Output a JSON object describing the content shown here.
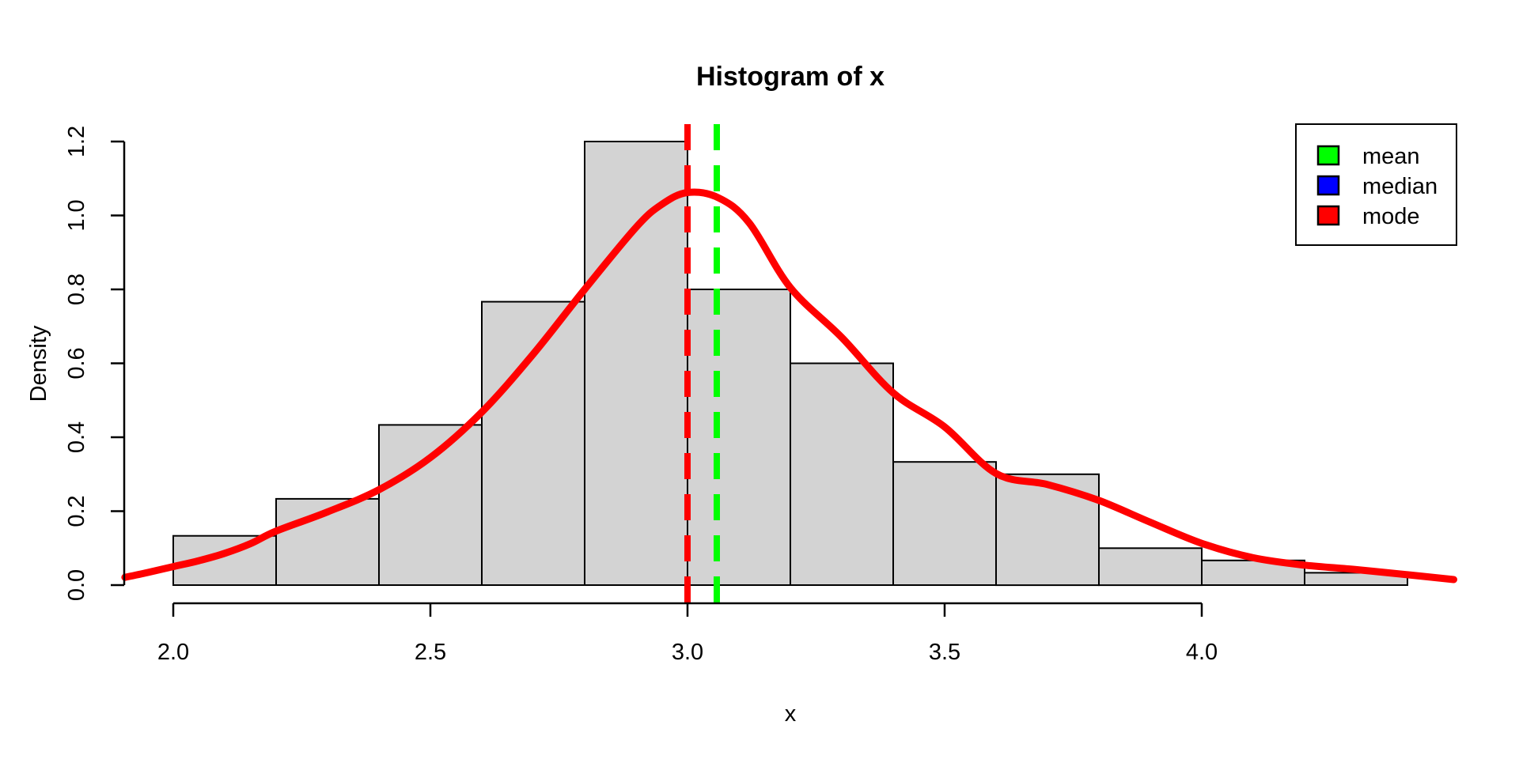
{
  "figure": {
    "title": "Histogram of x",
    "x_axis": {
      "label": "x",
      "tick_labels": [
        "2.0",
        "2.5",
        "3.0",
        "3.5",
        "4.0"
      ],
      "tick_values": [
        2.0,
        2.5,
        3.0,
        3.5,
        4.0
      ]
    },
    "y_axis": {
      "label": "Density",
      "tick_labels": [
        "0.0",
        "0.2",
        "0.4",
        "0.6",
        "0.8",
        "1.0",
        "1.2"
      ],
      "tick_values": [
        0.0,
        0.2,
        0.4,
        0.6,
        0.8,
        1.0,
        1.2
      ]
    },
    "legend": {
      "position": "topright",
      "items": [
        {
          "label": "mean",
          "color": "#00ff00"
        },
        {
          "label": "median",
          "color": "#0000ff"
        },
        {
          "label": "mode",
          "color": "#ff0000"
        }
      ]
    }
  },
  "chart_data": {
    "type": "histogram",
    "title": "Histogram of x",
    "xlabel": "x",
    "ylabel": "Density",
    "xlim": [
      1.904,
      4.496
    ],
    "ylim": [
      0,
      1.248
    ],
    "grid": false,
    "bar_fill": "#d3d3d3",
    "bar_border": "#000000",
    "bin_width": 0.2,
    "bin_breaks": [
      2.0,
      2.2,
      2.4,
      2.6,
      2.8,
      3.0,
      3.2,
      3.4,
      3.6,
      3.8,
      4.0,
      4.2,
      4.4
    ],
    "bin_densities": [
      0.1333,
      0.2333,
      0.4333,
      0.7667,
      1.2,
      0.8,
      0.6,
      0.3333,
      0.3,
      0.1,
      0.0667,
      0.0333
    ],
    "density_curve": {
      "color": "#ff0000",
      "peak": {
        "x": 3.0,
        "density": 1.06
      },
      "points": [
        [
          1.906,
          0.021
        ],
        [
          1.95,
          0.034
        ],
        [
          2.0,
          0.05
        ],
        [
          2.05,
          0.066
        ],
        [
          2.1,
          0.086
        ],
        [
          2.15,
          0.112
        ],
        [
          2.2,
          0.146
        ],
        [
          2.3,
          0.198
        ],
        [
          2.4,
          0.258
        ],
        [
          2.5,
          0.345
        ],
        [
          2.6,
          0.468
        ],
        [
          2.7,
          0.625
        ],
        [
          2.8,
          0.8
        ],
        [
          2.9,
          0.968
        ],
        [
          2.95,
          1.03
        ],
        [
          3.0,
          1.062
        ],
        [
          3.06,
          1.048
        ],
        [
          3.12,
          0.98
        ],
        [
          3.2,
          0.805
        ],
        [
          3.3,
          0.67
        ],
        [
          3.4,
          0.52
        ],
        [
          3.5,
          0.428
        ],
        [
          3.6,
          0.302
        ],
        [
          3.7,
          0.272
        ],
        [
          3.8,
          0.229
        ],
        [
          3.9,
          0.17
        ],
        [
          4.0,
          0.113
        ],
        [
          4.1,
          0.074
        ],
        [
          4.2,
          0.054
        ],
        [
          4.3,
          0.042
        ],
        [
          4.4,
          0.028
        ],
        [
          4.49,
          0.015
        ]
      ]
    },
    "vlines": [
      {
        "name": "median",
        "x": 3.0,
        "color": "#0000ff",
        "style": "dashed",
        "visibility": "hidden behind mode line"
      },
      {
        "name": "mean",
        "x": 3.057,
        "color": "#00ff00",
        "style": "dashed",
        "visibility": "visible"
      },
      {
        "name": "mode",
        "x": 3.0,
        "color": "#ff0000",
        "style": "dashed",
        "visibility": "visible"
      }
    ],
    "legend_position": "topright"
  }
}
